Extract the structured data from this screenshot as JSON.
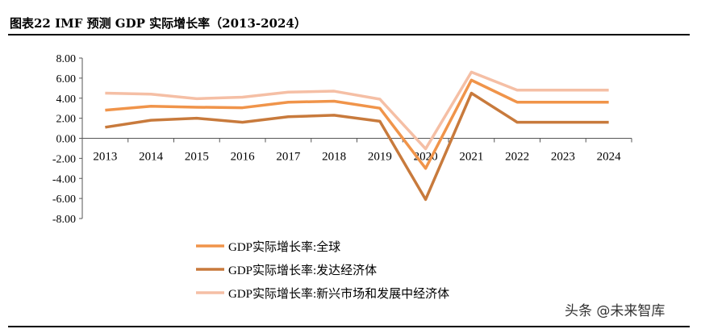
{
  "title": "图表22 IMF 预测 GDP 实际增长率（2013-2024）",
  "watermark": "头条 @未来智库",
  "chart_data": {
    "type": "line",
    "title": "图表22 IMF 预测 GDP 实际增长率（2013-2024）",
    "categories": [
      "2013",
      "2014",
      "2015",
      "2016",
      "2017",
      "2018",
      "2019",
      "2020",
      "2021",
      "2022",
      "2023",
      "2024"
    ],
    "ylim": [
      -8,
      8
    ],
    "yticks": [
      "8.00",
      "6.00",
      "4.00",
      "2.00",
      "0.00",
      "-2.00",
      "-4.00",
      "-6.00",
      "-8.00"
    ],
    "grid": false,
    "legend": "bottom",
    "series": [
      {
        "name": "GDP实际增长率:全球",
        "color": "#F0944A",
        "values": [
          2.8,
          3.2,
          3.1,
          3.05,
          3.6,
          3.7,
          3.0,
          -3.0,
          5.8,
          3.6,
          3.6,
          3.6
        ]
      },
      {
        "name": "GDP实际增长率:发达经济体",
        "color": "#C87A3C",
        "values": [
          1.1,
          1.8,
          2.0,
          1.6,
          2.15,
          2.3,
          1.7,
          -6.1,
          4.5,
          1.6,
          1.6,
          1.6
        ]
      },
      {
        "name": "GDP实际增长率:新兴市场和发展中经济体",
        "color": "#F5BFA5",
        "values": [
          4.5,
          4.4,
          3.95,
          4.1,
          4.6,
          4.7,
          3.9,
          -1.05,
          6.6,
          4.8,
          4.8,
          4.8
        ]
      }
    ]
  }
}
